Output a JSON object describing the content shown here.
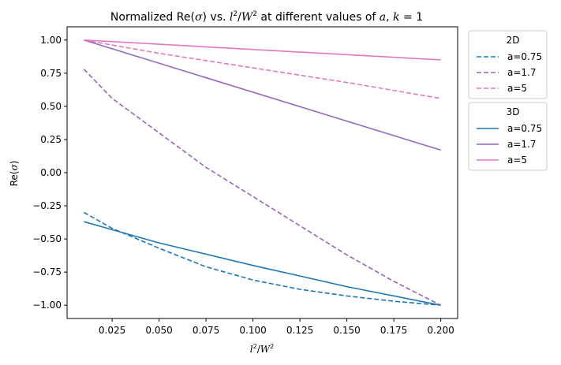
{
  "chart_data": {
    "type": "line",
    "title": {
      "pre": "Normalized Re(",
      "sigma": "σ",
      "mid": ") vs. ",
      "l": "l",
      "l_exp": "2",
      "slash": "/",
      "W": "W",
      "W_exp": "2",
      "post": " at different values of ",
      "a": "a",
      "comma": ", ",
      "k": "k",
      "eq": " = 1"
    },
    "xlabel": {
      "l": "l",
      "l_exp": "2",
      "slash": "/",
      "W": "W",
      "W_exp": "2"
    },
    "ylabel": {
      "pre": "Re(",
      "sigma": "σ",
      "post": ")"
    },
    "xlim": [
      0.001,
      0.209
    ],
    "ylim": [
      -1.1,
      1.1
    ],
    "xticks": [
      0.025,
      0.05,
      0.075,
      0.1,
      0.125,
      0.15,
      0.175,
      0.2
    ],
    "xtick_labels": [
      "0.025",
      "0.050",
      "0.075",
      "0.100",
      "0.125",
      "0.150",
      "0.175",
      "0.200"
    ],
    "yticks": [
      -1.0,
      -0.75,
      -0.5,
      -0.25,
      0.0,
      0.25,
      0.5,
      0.75,
      1.0
    ],
    "ytick_labels": [
      "−1.00",
      "−0.75",
      "−0.50",
      "−0.25",
      "0.00",
      "0.25",
      "0.50",
      "0.75",
      "1.00"
    ],
    "grid": false,
    "legend_placement": "outside right, upper",
    "colors": {
      "a075": "#1f77b4",
      "a17": "#9467bd",
      "a5": "#e377c2"
    },
    "legends": [
      {
        "title": "2D",
        "entries": [
          "a=0.75",
          "a=1.7",
          "a=5"
        ],
        "style": "dashed"
      },
      {
        "title": "3D",
        "entries": [
          "a=0.75",
          "a=1.7",
          "a=5"
        ],
        "style": "solid"
      }
    ],
    "series": [
      {
        "name": "a=0.75",
        "group": "2D",
        "color": "#1f77b4",
        "dash": true,
        "x": [
          0.01,
          0.025,
          0.05,
          0.075,
          0.1,
          0.125,
          0.15,
          0.175,
          0.2
        ],
        "y": [
          -0.3,
          -0.42,
          -0.57,
          -0.71,
          -0.81,
          -0.88,
          -0.93,
          -0.97,
          -1.0
        ]
      },
      {
        "name": "a=1.7",
        "group": "2D",
        "color": "#9467bd",
        "dash": true,
        "x": [
          0.01,
          0.025,
          0.05,
          0.075,
          0.1,
          0.125,
          0.15,
          0.175,
          0.2
        ],
        "y": [
          0.78,
          0.56,
          0.3,
          0.04,
          -0.18,
          -0.4,
          -0.62,
          -0.82,
          -1.0
        ]
      },
      {
        "name": "a=5",
        "group": "2D",
        "color": "#e377c2",
        "dash": true,
        "x": [
          0.01,
          0.05,
          0.1,
          0.15,
          0.2
        ],
        "y": [
          1.0,
          0.9,
          0.79,
          0.68,
          0.56
        ]
      },
      {
        "name": "a=0.75",
        "group": "3D",
        "color": "#1f77b4",
        "dash": false,
        "x": [
          0.01,
          0.05,
          0.1,
          0.15,
          0.2
        ],
        "y": [
          -0.37,
          -0.53,
          -0.7,
          -0.86,
          -1.0
        ]
      },
      {
        "name": "a=1.7",
        "group": "3D",
        "color": "#9467bd",
        "dash": false,
        "x": [
          0.01,
          0.2
        ],
        "y": [
          1.0,
          0.17
        ]
      },
      {
        "name": "a=5",
        "group": "3D",
        "color": "#e377c2",
        "dash": false,
        "x": [
          0.01,
          0.2
        ],
        "y": [
          1.0,
          0.85
        ]
      }
    ]
  }
}
